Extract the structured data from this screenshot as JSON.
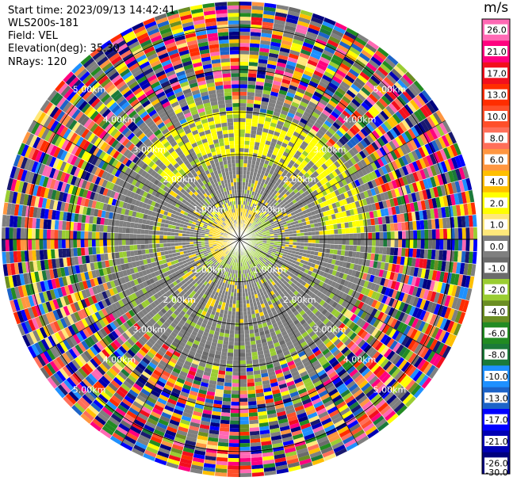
{
  "header": {
    "start_time": "Start time: 2023/09/13 14:42:41",
    "instrument": "WLS200s-181",
    "field": "Field: VEL",
    "elevation": "Elevation(deg): 35.30",
    "nrays": "NRays: 120"
  },
  "colorbar": {
    "unit": "m/s",
    "ticks": [
      "26.0",
      "21.0",
      "17.0",
      "13.0",
      "10.0",
      "8.0",
      "6.0",
      "4.0",
      "2.0",
      "1.0",
      "0.0",
      "-1.0",
      "-2.0",
      "-4.0",
      "-6.0",
      "-8.0",
      "-10.0",
      "-13.0",
      "-17.0",
      "-21.0",
      "-26.0",
      "-30.0"
    ],
    "colors": [
      "#ff69b4",
      "#ff007f",
      "#f20f1d",
      "#ff2d00",
      "#ff4f2a",
      "#ff6f5a",
      "#ff9640",
      "#ffbf00",
      "#ffff00",
      "#ffe87a",
      "#7f7f7f",
      "#6b6b6b",
      "#9acd32",
      "#6b8e23",
      "#228b22",
      "#1b7a3a",
      "#1e90ff",
      "#1c63c8",
      "#0000ff",
      "#0000b4",
      "#00007f",
      "#191970"
    ]
  },
  "chart_data": {
    "type": "heatmap",
    "projection": "polar PPI",
    "n_rays": 120,
    "range_rings_km": [
      1.0,
      2.0,
      3.0,
      4.0,
      5.0
    ],
    "ring_labels": [
      "1.00km",
      "2.00km",
      "3.00km",
      "4.00km",
      "5.00km"
    ],
    "max_range_km": 5.6,
    "value_unit": "m/s",
    "value_range": [
      -30.0,
      26.0
    ],
    "description_of_field": {
      "inner_yellow_region_km": [
        0.0,
        0.7
      ],
      "inner_green_region_km": [
        0.0,
        1.0
      ],
      "near_zero_gray_region_km": [
        0.3,
        3.0
      ],
      "yellow_band_north_km": [
        2.0,
        3.0
      ],
      "noise_region_km": [
        3.0,
        5.6
      ]
    }
  }
}
